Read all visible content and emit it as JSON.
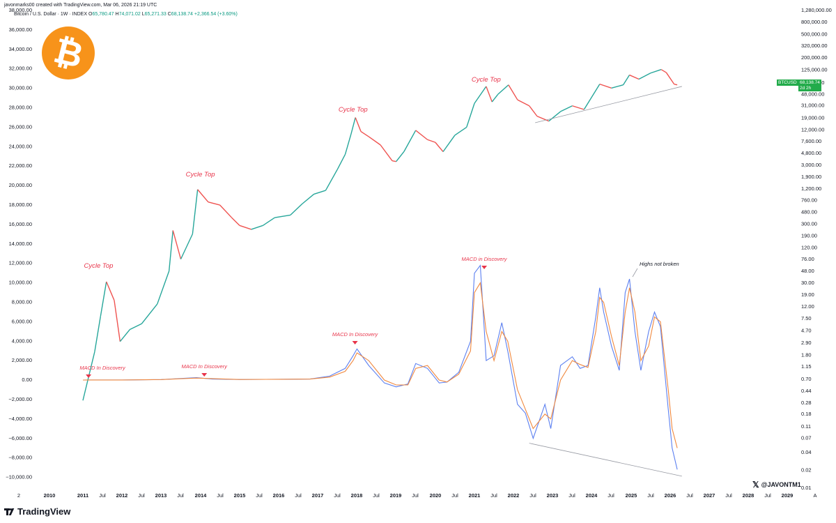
{
  "header": {
    "author_line": "javonmarks00 created with TradingView.com, Mar 06, 2026 21:19 UTC",
    "symbol": "Bitcoin / U.S. Dollar · 1W · INDEX",
    "open_label": "O",
    "open": "65,780.47",
    "high_label": "H",
    "high": "74,071.02",
    "low_label": "L",
    "low": "65,271.33",
    "close_label": "C",
    "close": "68,138.74",
    "change": "+2,366.54 (+3.60%)"
  },
  "price_tag": {
    "symbol": "BTCUSD",
    "price": "68,138.74",
    "countdown": "2d 2h"
  },
  "brand": {
    "name": "TradingView",
    "watermark": "@JAVONTM1"
  },
  "logo": {
    "glyph": "₿",
    "color": "#f7931a",
    "icon": "bitcoin-logo"
  },
  "colors": {
    "bull": "#26a69a",
    "bear": "#ef5350",
    "macd": "#5b7ff0",
    "signal": "#f0883e",
    "annotation": "#e8344a",
    "trendline": "#9598a1"
  },
  "chart_data": [
    {
      "type": "line",
      "title": "",
      "scale": "log",
      "price_axis_ticks_right": [
        "1,280,000.00",
        "800,000.00",
        "500,000.00",
        "320,000.00",
        "200,000.00",
        "125,000.00",
        "75,000.00",
        "48,000.00",
        "31,000.00",
        "19,000.00",
        "12,000.00",
        "7,600.00",
        "4,800.00",
        "3,000.00",
        "1,900.00",
        "1,200.00",
        "760.00",
        "480.00",
        "300.00",
        "190.00",
        "120.00",
        "76.00",
        "48.00",
        "30.00",
        "19.00",
        "12.00",
        "7.50",
        "4.70",
        "2.90",
        "1.80",
        "1.15",
        "0.70",
        "0.44",
        "0.28",
        "0.18",
        "0.11",
        "0.07",
        "0.04",
        "0.02",
        "0.01"
      ],
      "x_tick_labels": [
        "2",
        "2010",
        "2011",
        "Jul",
        "2012",
        "Jul",
        "2013",
        "Jul",
        "2014",
        "Jul",
        "2015",
        "Jul",
        "2016",
        "Jul",
        "2017",
        "Jul",
        "2018",
        "Jul",
        "2019",
        "Jul",
        "2020",
        "Jul",
        "2021",
        "Jul",
        "2022",
        "Jul",
        "2023",
        "Jul",
        "2024",
        "Jul",
        "2025",
        "Jul",
        "2026",
        "Jul",
        "2027",
        "Jul",
        "2028",
        "Jul",
        "2029",
        "A"
      ],
      "series": [
        {
          "name": "BTCUSD",
          "x": [
            2011.0,
            2011.3,
            2011.45,
            2011.6,
            2011.8,
            2011.95,
            2012.2,
            2012.5,
            2012.9,
            2013.2,
            2013.3,
            2013.5,
            2013.8,
            2013.93,
            2014.2,
            2014.5,
            2014.8,
            2015.0,
            2015.3,
            2015.6,
            2015.9,
            2016.3,
            2016.6,
            2016.9,
            2017.2,
            2017.5,
            2017.7,
            2017.85,
            2017.96,
            2018.1,
            2018.3,
            2018.6,
            2018.9,
            2019.0,
            2019.2,
            2019.5,
            2019.8,
            2020.0,
            2020.2,
            2020.5,
            2020.8,
            2021.0,
            2021.3,
            2021.45,
            2021.6,
            2021.87,
            2022.1,
            2022.4,
            2022.6,
            2022.9,
            2023.2,
            2023.5,
            2023.8,
            2024.2,
            2024.5,
            2024.8,
            2024.96,
            2025.2,
            2025.5,
            2025.77,
            2025.9,
            2026.1,
            2026.18
          ],
          "values": [
            0.3,
            2,
            8,
            31,
            15,
            3,
            4.8,
            6,
            13,
            47,
            230,
            75,
            200,
            1140,
            700,
            620,
            380,
            280,
            240,
            280,
            380,
            420,
            650,
            950,
            1100,
            2500,
            4500,
            10000,
            19000,
            11000,
            9000,
            6500,
            3500,
            3400,
            5000,
            11500,
            8000,
            7200,
            5000,
            9500,
            13000,
            33000,
            64000,
            35000,
            47000,
            68000,
            38000,
            30000,
            20000,
            16500,
            24000,
            30000,
            26000,
            70000,
            60000,
            68000,
            100000,
            85000,
            108000,
            124000,
            110000,
            70000,
            68138.74
          ]
        }
      ],
      "annotations": [
        "Cycle Top",
        "Cycle Top",
        "Cycle Top",
        "Cycle Top"
      ]
    },
    {
      "type": "line",
      "title": "",
      "y_axis_ticks_left": [
        "38,000.00",
        "36,000.00",
        "34,000.00",
        "32,000.00",
        "30,000.00",
        "28,000.00",
        "26,000.00",
        "24,000.00",
        "22,000.00",
        "20,000.00",
        "18,000.00",
        "16,000.00",
        "14,000.00",
        "12,000.00",
        "10,000.00",
        "8,000.00",
        "6,000.00",
        "4,000.00",
        "2,000.00",
        "0.00",
        "−2,000.00",
        "−4,000.00",
        "−6,000.00",
        "−8,000.00",
        "−10,000.00"
      ],
      "series": [
        {
          "name": "MACD",
          "x": [
            2011.0,
            2012.0,
            2013.0,
            2013.9,
            2014.3,
            2015.0,
            2016.0,
            2016.8,
            2017.3,
            2017.7,
            2017.9,
            2018.0,
            2018.3,
            2018.7,
            2019.0,
            2019.3,
            2019.5,
            2019.8,
            2020.1,
            2020.3,
            2020.6,
            2020.9,
            2021.0,
            2021.15,
            2021.3,
            2021.5,
            2021.7,
            2021.85,
            2022.1,
            2022.3,
            2022.5,
            2022.8,
            2022.95,
            2023.2,
            2023.5,
            2023.7,
            2023.9,
            2024.1,
            2024.2,
            2024.3,
            2024.5,
            2024.7,
            2024.85,
            2024.96,
            2025.1,
            2025.25,
            2025.45,
            2025.6,
            2025.75,
            2025.95,
            2026.05,
            2026.18
          ],
          "values": [
            0,
            10,
            50,
            250,
            100,
            60,
            80,
            100,
            400,
            1200,
            2500,
            3200,
            1500,
            -300,
            -700,
            -400,
            1700,
            1200,
            -300,
            -200,
            800,
            4000,
            11000,
            11800,
            2000,
            2500,
            5900,
            3000,
            -2500,
            -3400,
            -6000,
            -2500,
            -5000,
            1500,
            2400,
            1200,
            1500,
            6500,
            9500,
            7000,
            3500,
            1000,
            9000,
            10400,
            5000,
            1000,
            5000,
            7000,
            5500,
            -3000,
            -7000,
            -9200
          ]
        },
        {
          "name": "Signal",
          "x": [
            2011.0,
            2012.0,
            2013.0,
            2013.9,
            2014.3,
            2015.0,
            2016.0,
            2016.8,
            2017.3,
            2017.7,
            2017.9,
            2018.0,
            2018.3,
            2018.7,
            2019.0,
            2019.3,
            2019.5,
            2019.8,
            2020.1,
            2020.3,
            2020.6,
            2020.9,
            2021.0,
            2021.15,
            2021.3,
            2021.5,
            2021.7,
            2021.85,
            2022.1,
            2022.3,
            2022.5,
            2022.8,
            2022.95,
            2023.2,
            2023.5,
            2023.7,
            2023.9,
            2024.1,
            2024.2,
            2024.3,
            2024.5,
            2024.7,
            2024.85,
            2024.96,
            2025.1,
            2025.25,
            2025.45,
            2025.6,
            2025.75,
            2025.95,
            2026.05,
            2026.18
          ],
          "values": [
            0,
            10,
            50,
            200,
            150,
            60,
            80,
            100,
            300,
            900,
            2000,
            2800,
            2000,
            0,
            -500,
            -500,
            1200,
            1500,
            0,
            -200,
            600,
            3000,
            9000,
            10000,
            5000,
            2000,
            5000,
            4000,
            -1000,
            -3000,
            -5000,
            -3500,
            -4000,
            0,
            2000,
            1600,
            1300,
            5000,
            8500,
            8000,
            4500,
            1500,
            7000,
            9500,
            7000,
            2000,
            3500,
            6500,
            6000,
            -1000,
            -5000,
            -7000
          ]
        }
      ],
      "annotations": [
        "MACD In Discovery",
        "MACD In Discovery",
        "MACD In Discovery",
        "MACD in Discovery",
        "Highs not broken"
      ]
    }
  ]
}
